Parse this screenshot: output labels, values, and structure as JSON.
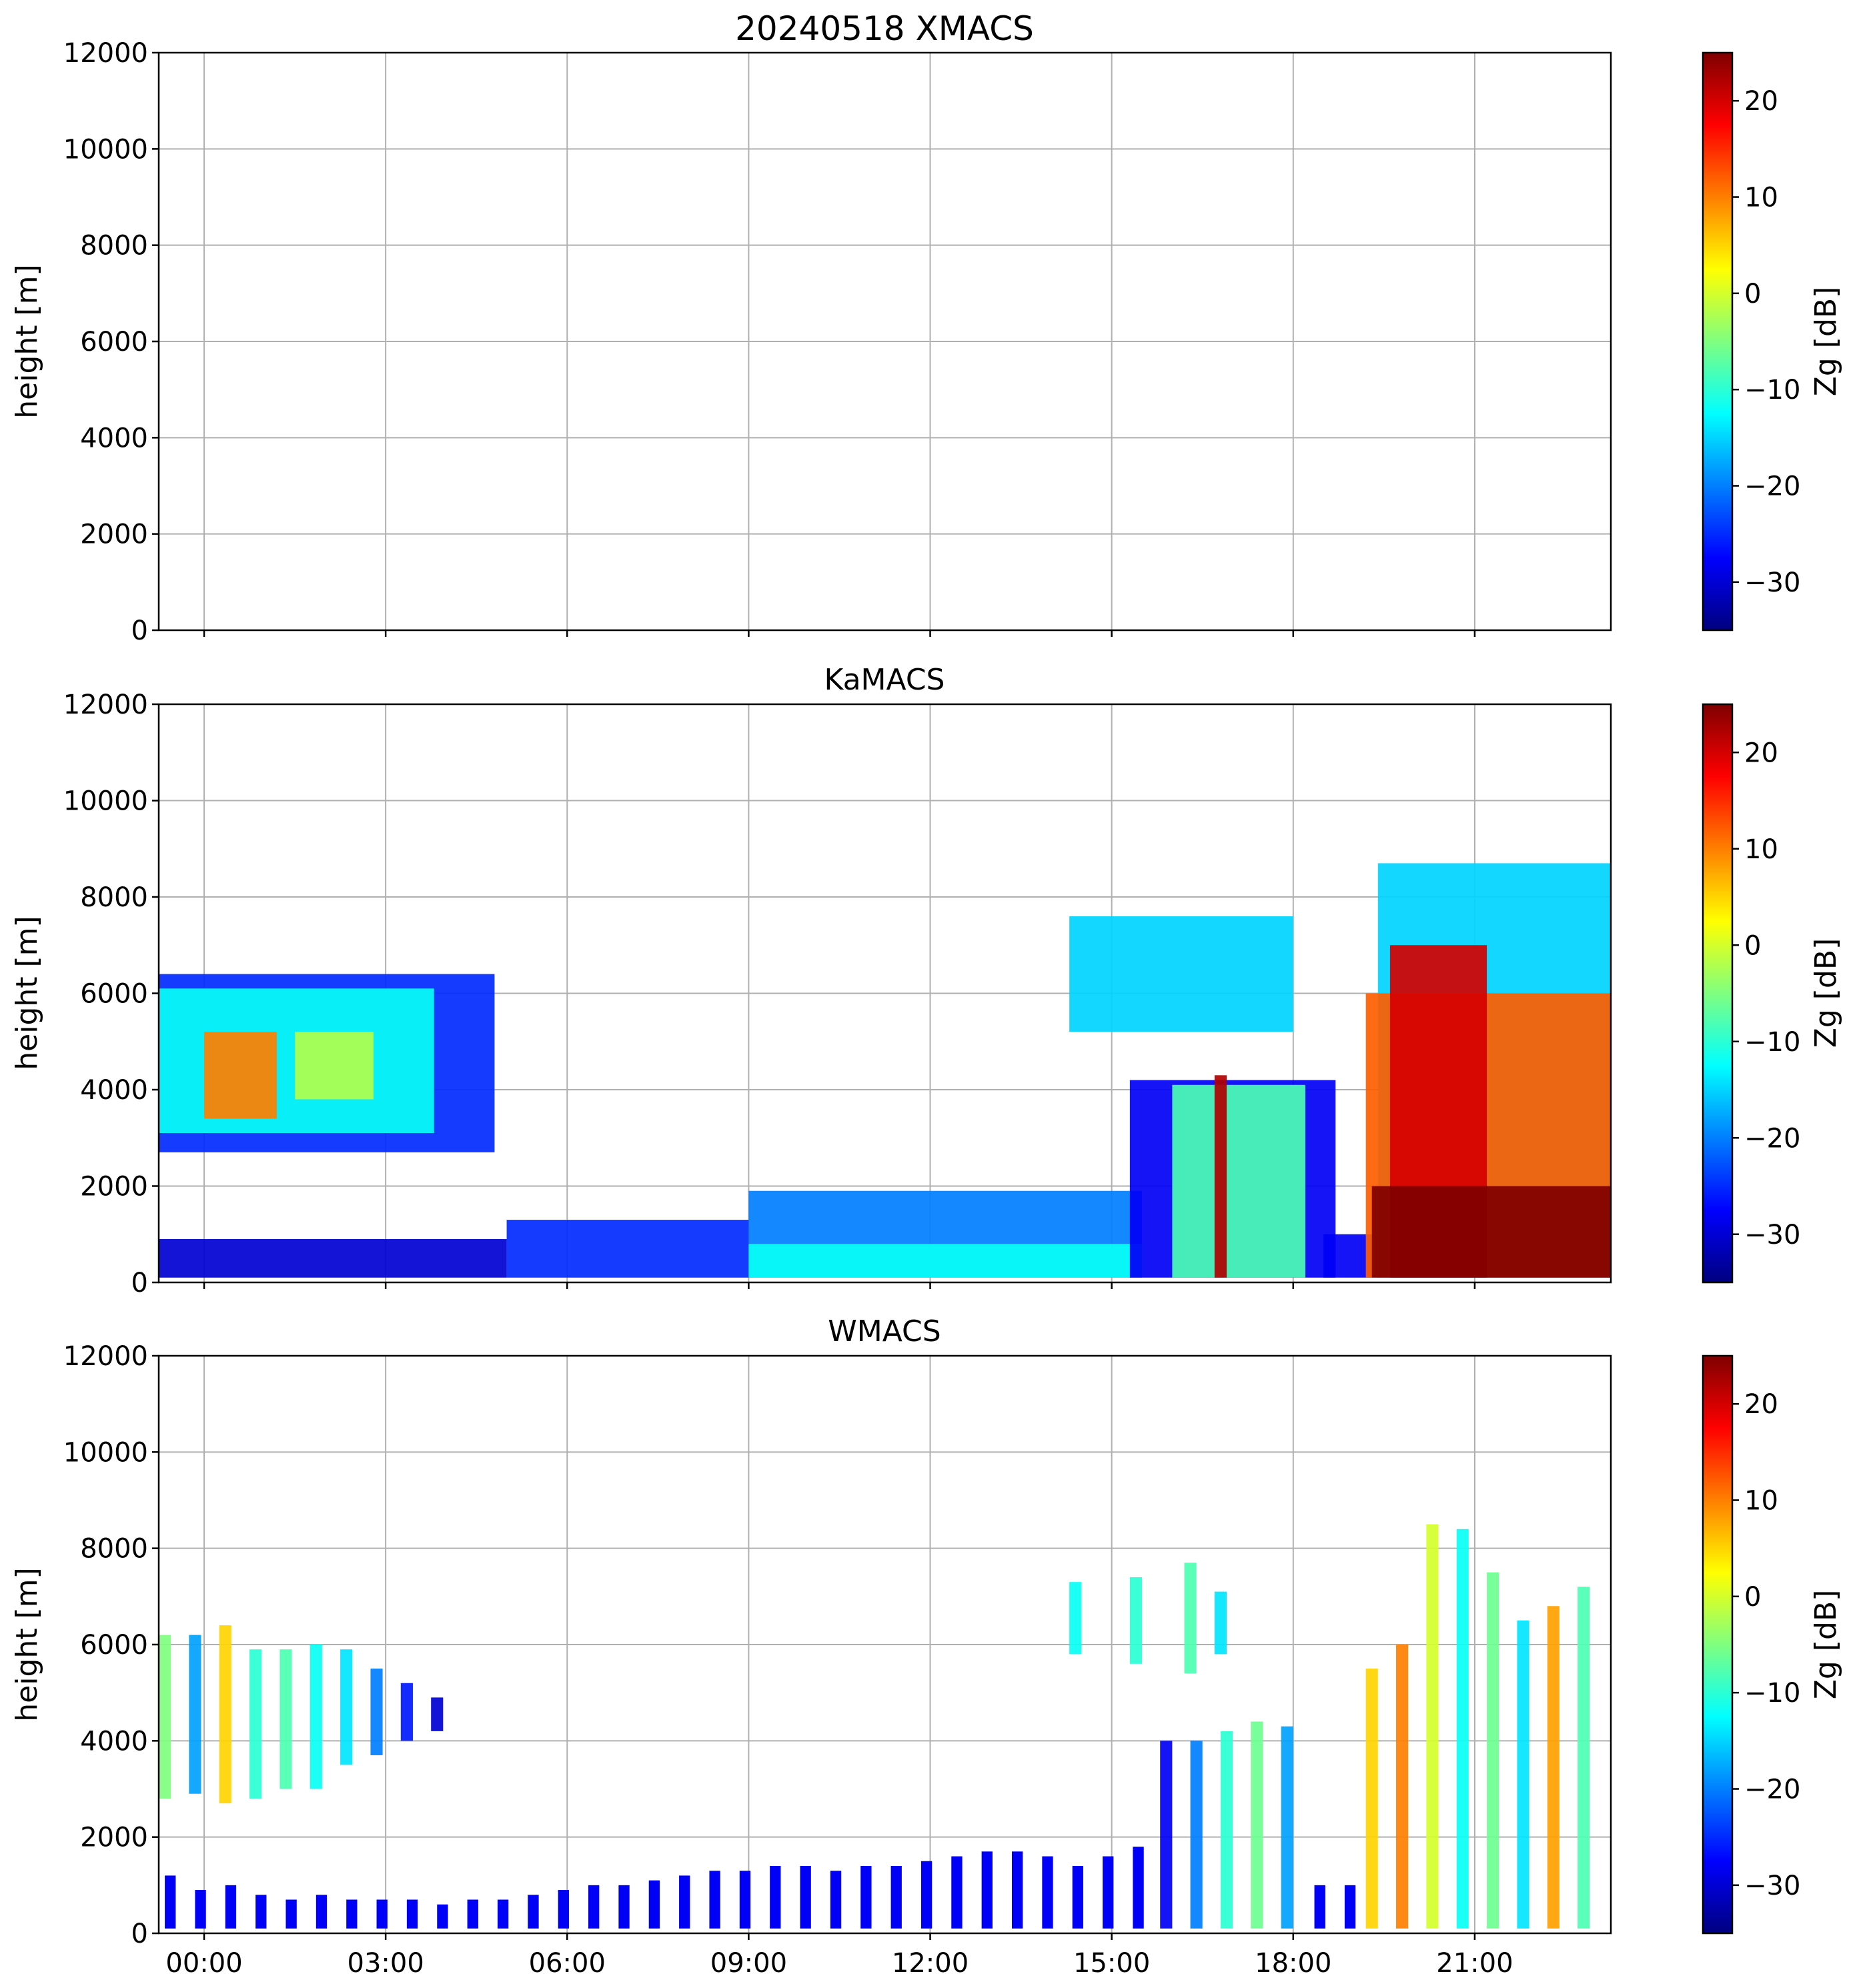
{
  "figure_title": "20240518 XMACS",
  "colors": {
    "grid": "#b0b0b0",
    "axes": "#000000",
    "background": "#ffffff",
    "colormap": [
      "#00007f",
      "#0000ff",
      "#007fff",
      "#00ffff",
      "#7fff7f",
      "#ffff00",
      "#ff7f00",
      "#ff0000",
      "#7f0000"
    ]
  },
  "x_tick_labels": [
    "00:00",
    "03:00",
    "06:00",
    "09:00",
    "12:00",
    "15:00",
    "18:00",
    "21:00"
  ],
  "chart_data": [
    {
      "type": "heatmap",
      "title": "20240518 XMACS",
      "xlabel": "",
      "ylabel": "height [m]",
      "xlim_hours": [
        -0.75,
        23.25
      ],
      "ylim": [
        0,
        12000
      ],
      "yticks": [
        "0",
        "2000",
        "4000",
        "6000",
        "8000",
        "10000",
        "12000"
      ],
      "grid": true,
      "colorbar": {
        "label": "Zg [dB]",
        "range": [
          -35,
          25
        ],
        "ticks": [
          "−30",
          "−20",
          "−10",
          "0",
          "10",
          "20"
        ]
      },
      "regions": []
    },
    {
      "type": "heatmap",
      "title": "KaMACS",
      "xlabel": "",
      "ylabel": "height [m]",
      "xlim_hours": [
        -0.75,
        23.25
      ],
      "ylim": [
        0,
        12000
      ],
      "yticks": [
        "0",
        "2000",
        "4000",
        "6000",
        "8000",
        "10000",
        "12000"
      ],
      "grid": true,
      "colorbar": {
        "label": "Zg [dB]",
        "range": [
          -35,
          25
        ],
        "ticks": [
          "−30",
          "−20",
          "−10",
          "0",
          "10",
          "20"
        ]
      },
      "regions": [
        {
          "name": "early-upper-cloud-edge",
          "t0": -0.75,
          "t1": 4.8,
          "h0": 2700,
          "h1": 6400,
          "z": -25
        },
        {
          "name": "early-upper-cloud",
          "t0": -0.75,
          "t1": 3.8,
          "h0": 3100,
          "h1": 6100,
          "z": -12
        },
        {
          "name": "early-upper-core",
          "t0": 0.0,
          "t1": 1.2,
          "h0": 3400,
          "h1": 5200,
          "z": 10
        },
        {
          "name": "early-core-2",
          "t0": 1.5,
          "t1": 2.8,
          "h0": 3800,
          "h1": 5200,
          "z": -2
        },
        {
          "name": "low-clutter-early",
          "t0": -0.75,
          "t1": 5.0,
          "h0": 100,
          "h1": 900,
          "z": -30
        },
        {
          "name": "low-layer-morning",
          "t0": 5.0,
          "t1": 9.0,
          "h0": 100,
          "h1": 1300,
          "z": -25
        },
        {
          "name": "low-layer-midday",
          "t0": 9.0,
          "t1": 15.5,
          "h0": 100,
          "h1": 1900,
          "z": -20
        },
        {
          "name": "low-layer-midday-core",
          "t0": 9.0,
          "t1": 15.5,
          "h0": 100,
          "h1": 800,
          "z": -12
        },
        {
          "name": "mid-cloud-cells",
          "t0": 14.3,
          "t1": 18.0,
          "h0": 5200,
          "h1": 7600,
          "z": -15
        },
        {
          "name": "conv-afternoon-edge",
          "t0": 15.3,
          "t1": 18.7,
          "h0": 100,
          "h1": 4200,
          "z": -28
        },
        {
          "name": "conv-afternoon",
          "t0": 16.0,
          "t1": 18.2,
          "h0": 100,
          "h1": 4100,
          "z": -8
        },
        {
          "name": "conv-afternoon-core",
          "t0": 16.7,
          "t1": 16.9,
          "h0": 100,
          "h1": 4300,
          "z": 22
        },
        {
          "name": "low-layer-evening",
          "t0": 18.5,
          "t1": 19.3,
          "h0": 100,
          "h1": 1000,
          "z": -28
        },
        {
          "name": "evening-storm-top",
          "t0": 19.4,
          "t1": 23.25,
          "h0": 100,
          "h1": 8700,
          "z": -15
        },
        {
          "name": "evening-storm",
          "t0": 19.2,
          "t1": 23.25,
          "h0": 100,
          "h1": 6000,
          "z": 12
        },
        {
          "name": "evening-storm-core",
          "t0": 19.6,
          "t1": 21.2,
          "h0": 100,
          "h1": 7000,
          "z": 20
        },
        {
          "name": "evening-rain",
          "t0": 19.3,
          "t1": 23.25,
          "h0": 100,
          "h1": 2000,
          "z": 25
        }
      ]
    },
    {
      "type": "heatmap",
      "title": "WMACS",
      "xlabel": "",
      "ylabel": "height [m]",
      "xlim_hours": [
        -0.75,
        23.25
      ],
      "ylim": [
        0,
        12000
      ],
      "yticks": [
        "0",
        "2000",
        "4000",
        "6000",
        "8000",
        "10000",
        "12000"
      ],
      "grid": true,
      "colorbar": {
        "label": "Zg [dB]",
        "range": [
          -35,
          25
        ],
        "ticks": [
          "−30",
          "−20",
          "−10",
          "0",
          "10",
          "20"
        ]
      },
      "regions": [
        {
          "name": "strip-1",
          "t0": -0.75,
          "t1": -0.55,
          "h0": 2800,
          "h1": 6200,
          "z": -5
        },
        {
          "name": "strip-2",
          "t0": -0.25,
          "t1": -0.05,
          "h0": 2900,
          "h1": 6200,
          "z": -18
        },
        {
          "name": "strip-3",
          "t0": 0.25,
          "t1": 0.45,
          "h0": 2700,
          "h1": 6400,
          "z": 5
        },
        {
          "name": "strip-4",
          "t0": 0.75,
          "t1": 0.95,
          "h0": 2800,
          "h1": 5900,
          "z": -10
        },
        {
          "name": "strip-5",
          "t0": 1.25,
          "t1": 1.45,
          "h0": 3000,
          "h1": 5900,
          "z": -8
        },
        {
          "name": "strip-6",
          "t0": 1.75,
          "t1": 1.95,
          "h0": 3000,
          "h1": 6000,
          "z": -12
        },
        {
          "name": "strip-7",
          "t0": 2.25,
          "t1": 2.45,
          "h0": 3500,
          "h1": 5900,
          "z": -14
        },
        {
          "name": "strip-8",
          "t0": 2.75,
          "t1": 2.95,
          "h0": 3700,
          "h1": 5500,
          "z": -20
        },
        {
          "name": "strip-9",
          "t0": 3.25,
          "t1": 3.45,
          "h0": 4000,
          "h1": 5200,
          "z": -26
        },
        {
          "name": "strip-10",
          "t0": 3.75,
          "t1": 3.95,
          "h0": 4200,
          "h1": 4900,
          "z": -30
        },
        {
          "name": "mid-cells-1",
          "t0": 14.3,
          "t1": 14.5,
          "h0": 5800,
          "h1": 7300,
          "z": -12
        },
        {
          "name": "mid-cells-2",
          "t0": 15.3,
          "t1": 15.5,
          "h0": 5600,
          "h1": 7400,
          "z": -10
        },
        {
          "name": "mid-cells-3",
          "t0": 16.2,
          "t1": 16.4,
          "h0": 5400,
          "h1": 7700,
          "z": -8
        },
        {
          "name": "mid-cells-4",
          "t0": 16.7,
          "t1": 16.9,
          "h0": 5800,
          "h1": 7100,
          "z": -14
        },
        {
          "name": "conv-1",
          "t0": 15.8,
          "t1": 16.0,
          "h0": 100,
          "h1": 4000,
          "z": -28
        },
        {
          "name": "conv-2",
          "t0": 16.3,
          "t1": 16.5,
          "h0": 100,
          "h1": 4000,
          "z": -20
        },
        {
          "name": "conv-3",
          "t0": 16.8,
          "t1": 17.0,
          "h0": 100,
          "h1": 4200,
          "z": -10
        },
        {
          "name": "conv-4",
          "t0": 17.3,
          "t1": 17.5,
          "h0": 100,
          "h1": 4400,
          "z": -6
        },
        {
          "name": "conv-5",
          "t0": 17.8,
          "t1": 18.0,
          "h0": 100,
          "h1": 4300,
          "z": -18
        },
        {
          "name": "storm-1",
          "t0": 19.2,
          "t1": 19.4,
          "h0": 100,
          "h1": 5500,
          "z": 5
        },
        {
          "name": "storm-2",
          "t0": 19.7,
          "t1": 19.9,
          "h0": 100,
          "h1": 6000,
          "z": 10
        },
        {
          "name": "storm-3",
          "t0": 20.2,
          "t1": 20.4,
          "h0": 100,
          "h1": 8500,
          "z": 0
        },
        {
          "name": "storm-4",
          "t0": 20.7,
          "t1": 20.9,
          "h0": 100,
          "h1": 8400,
          "z": -12
        },
        {
          "name": "storm-5",
          "t0": 21.2,
          "t1": 21.4,
          "h0": 100,
          "h1": 7500,
          "z": -6
        },
        {
          "name": "storm-6",
          "t0": 21.7,
          "t1": 21.9,
          "h0": 100,
          "h1": 6500,
          "z": -14
        },
        {
          "name": "storm-7",
          "t0": 22.2,
          "t1": 22.4,
          "h0": 100,
          "h1": 6800,
          "z": 8
        },
        {
          "name": "storm-8",
          "t0": 22.7,
          "t1": 22.9,
          "h0": 100,
          "h1": 7200,
          "z": -8
        }
      ],
      "low_strip_times": [
        -0.65,
        -0.15,
        0.35,
        0.85,
        1.35,
        1.85,
        2.35,
        2.85,
        3.35,
        3.85,
        4.35,
        4.85,
        5.35,
        5.85,
        6.35,
        6.85,
        7.35,
        7.85,
        8.35,
        8.85,
        9.35,
        9.85,
        10.35,
        10.85,
        11.35,
        11.85,
        12.35,
        12.85,
        13.35,
        13.85,
        14.35,
        14.85,
        15.35,
        18.35,
        18.85
      ],
      "low_strip_tops": [
        1200,
        900,
        1000,
        800,
        700,
        800,
        700,
        700,
        700,
        600,
        700,
        700,
        800,
        900,
        1000,
        1000,
        1100,
        1200,
        1300,
        1300,
        1400,
        1400,
        1300,
        1400,
        1400,
        1500,
        1600,
        1700,
        1700,
        1600,
        1400,
        1600,
        1800,
        1000,
        1000
      ]
    }
  ]
}
